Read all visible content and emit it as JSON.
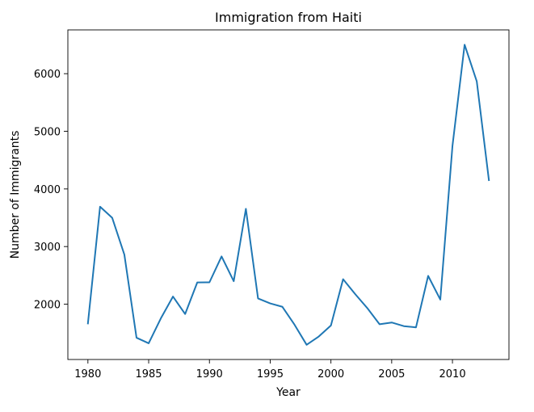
{
  "chart_data": {
    "type": "line",
    "title": "Immigration from Haiti",
    "xlabel": "Year",
    "ylabel": "Number of Immigrants",
    "xlim": [
      1978.35,
      2014.65
    ],
    "ylim": [
      1040,
      6760
    ],
    "xticks": [
      1980,
      1985,
      1990,
      1995,
      2000,
      2005,
      2010
    ],
    "yticks": [
      2000,
      3000,
      4000,
      5000,
      6000
    ],
    "grid": false,
    "series": [
      {
        "color": "#1f77b4",
        "x": [
          1980,
          1981,
          1982,
          1983,
          1984,
          1985,
          1986,
          1987,
          1988,
          1989,
          1990,
          1991,
          1992,
          1993,
          1994,
          1995,
          1996,
          1997,
          1998,
          1999,
          2000,
          2001,
          2002,
          2003,
          2004,
          2005,
          2006,
          2007,
          2008,
          2009,
          2010,
          2011,
          2012,
          2013
        ],
        "y": [
          1666,
          3692,
          3498,
          2860,
          1418,
          1321,
          1753,
          2132,
          1829,
          2377,
          2379,
          2829,
          2399,
          3655,
          2100,
          2014,
          1955,
          1645,
          1295,
          1439,
          1631,
          2433,
          2174,
          1930,
          1652,
          1682,
          1619,
          1598,
          2491,
          2080,
          4744,
          6503,
          5868,
          4152
        ]
      }
    ]
  }
}
